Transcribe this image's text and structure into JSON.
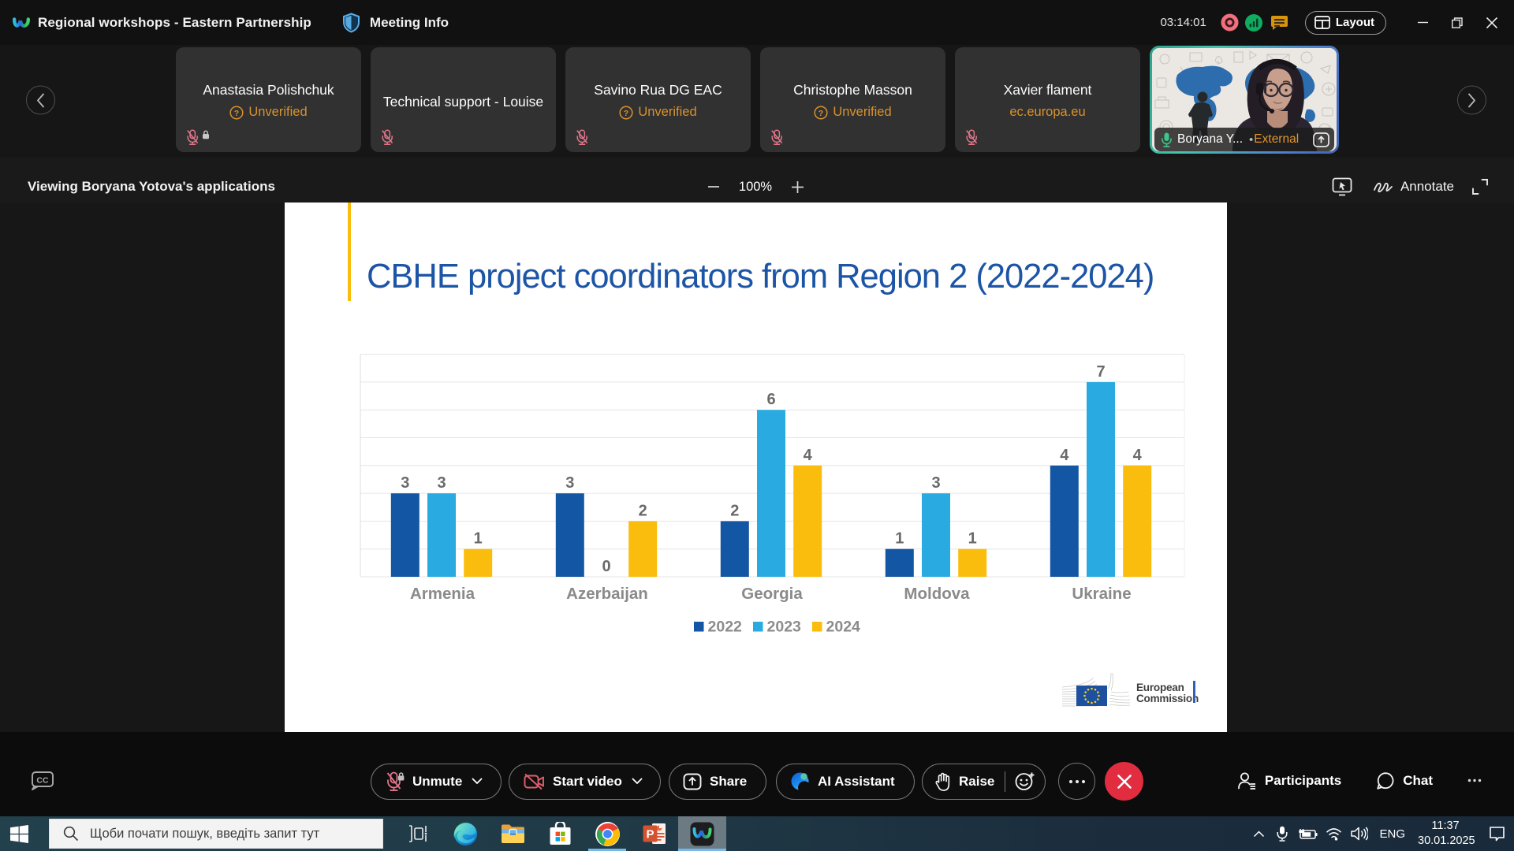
{
  "titlebar": {
    "meeting_title": "Regional workshops - Eastern Partnership",
    "meeting_info_label": "Meeting Info",
    "timer": "03:14:01",
    "layout_label": "Layout"
  },
  "strip": {
    "participants": [
      {
        "name": "Anastasia Polishchuk",
        "status": "Unverified",
        "status_type": "unverified",
        "mic": "muted-locked"
      },
      {
        "name": "Technical support - Louise",
        "status": "",
        "status_type": "none",
        "mic": "muted"
      },
      {
        "name": "Savino Rua DG EAC",
        "status": "Unverified",
        "status_type": "unverified",
        "mic": "muted"
      },
      {
        "name": "Christophe Masson",
        "status": "Unverified",
        "status_type": "unverified",
        "mic": "muted"
      },
      {
        "name": "Xavier flament",
        "status": "ec.europa.eu",
        "status_type": "domain",
        "mic": "muted"
      }
    ],
    "active_speaker": {
      "name": "Boryana Y...",
      "separator": "•",
      "badge": "External"
    }
  },
  "share_toolbar": {
    "viewing_text": "Viewing Boryana Yotova's applications",
    "zoom_level": "100%",
    "annotate_label": "Annotate"
  },
  "slide": {
    "title": "CBHE project coordinators from Region 2 (2022-2024)",
    "logo_line1": "European",
    "logo_line2": "Commission"
  },
  "chart_data": {
    "type": "bar",
    "title": "CBHE project coordinators from Region 2 (2022-2024)",
    "categories": [
      "Armenia",
      "Azerbaijan",
      "Georgia",
      "Moldova",
      "Ukraine"
    ],
    "series": [
      {
        "name": "2022",
        "color": "#1356a3",
        "values": [
          3,
          3,
          2,
          1,
          4
        ]
      },
      {
        "name": "2023",
        "color": "#29abe2",
        "values": [
          3,
          0,
          6,
          3,
          7
        ]
      },
      {
        "name": "2024",
        "color": "#fbbd0d",
        "values": [
          1,
          2,
          4,
          1,
          4
        ]
      }
    ],
    "xlabel": "",
    "ylabel": "",
    "ylim": [
      0,
      8
    ],
    "gridlines": true,
    "legend_position": "bottom",
    "value_labels": true
  },
  "controls": {
    "cc_label": "CC",
    "unmute_label": "Unmute",
    "start_video_label": "Start video",
    "share_label": "Share",
    "ai_label": "AI Assistant",
    "raise_label": "Raise",
    "participants_label": "Participants",
    "chat_label": "Chat"
  },
  "taskbar": {
    "search_placeholder": "Щоби почати пошук, введіть запит тут",
    "language": "ENG",
    "time": "11:37",
    "date": "30.01.2025"
  },
  "colors": {
    "accent_yellow": "#fbbd0d",
    "title_blue": "#1c55a6",
    "unverified_orange": "#d9922e",
    "muted_pink": "#e2758a",
    "active_mic_green": "#3ec58a",
    "leave_red": "#e22c40",
    "value_label_gray": "#696969",
    "category_label_gray": "#8a8a8a"
  }
}
